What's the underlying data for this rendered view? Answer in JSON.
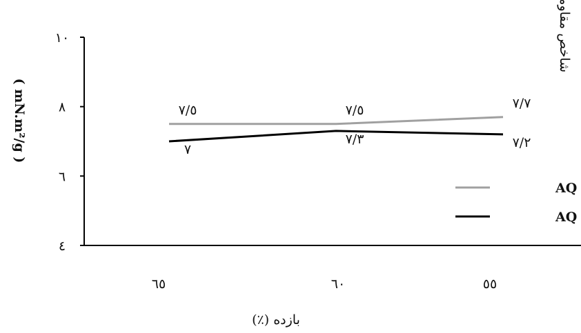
{
  "chart_data": {
    "type": "line",
    "categories": [
      "٦٥",
      "٦٠",
      "٥٥"
    ],
    "ylabel": "شاخص مقاومت به پارگی",
    "ylabel_unit": "( mN.m²/g )",
    "xlabel": "بازده (٪)",
    "ylim": [
      4,
      10
    ],
    "yticks": [
      {
        "value": 4,
        "label": "٤"
      },
      {
        "value": 6,
        "label": "٦"
      },
      {
        "value": 8,
        "label": "٨"
      },
      {
        "value": 10,
        "label": "١٠"
      }
    ],
    "grid": false,
    "legend_position": "right",
    "series": [
      {
        "name": "با AQ",
        "values": [
          7.5,
          7.5,
          7.7
        ],
        "labels": [
          "٧/٥",
          "٧/٥",
          "٧/٧"
        ],
        "color": "#a0a0a0",
        "label_side": "above"
      },
      {
        "name": "بدون AQ",
        "values": [
          7.0,
          7.3,
          7.2
        ],
        "labels": [
          "٧",
          "٧/٣",
          "٧/٢"
        ],
        "color": "#000000",
        "label_side": "below"
      }
    ]
  }
}
